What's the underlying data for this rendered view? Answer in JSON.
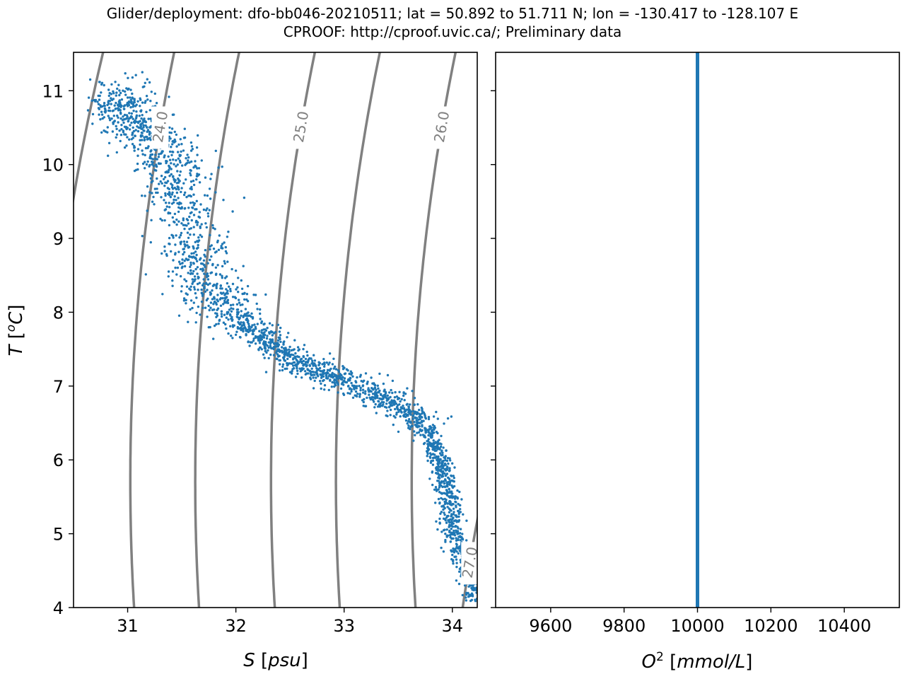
{
  "figure": {
    "title_line1": "Glider/deployment: dfo-bb046-20210511; lat = 50.892 to 51.711 N; lon = -130.417 to -128.107 E",
    "title_line2": "CPROOF: http://cproof.uvic.ca/; Preliminary data"
  },
  "chart_data": [
    {
      "type": "scatter",
      "panel": "left",
      "xlabel_italic": "S",
      "xlabel_unit": "psu",
      "ylabel_italic": "T",
      "ylabel_unit_sup": "o",
      "ylabel_unit_letter": "C",
      "xlim": [
        30.5,
        34.23
      ],
      "ylim": [
        4.0,
        11.52
      ],
      "xticks": [
        31,
        32,
        33,
        34
      ],
      "yticks": [
        4,
        5,
        6,
        7,
        8,
        9,
        10,
        11
      ],
      "color": "#1f77b4",
      "density_contours": [
        {
          "label": "",
          "ref": [
            30.5,
            9.55
          ]
        },
        {
          "label": "24.0",
          "ref": [
            31.3,
            10.5
          ]
        },
        {
          "label": "",
          "ref": [
            31.9,
            10.5
          ]
        },
        {
          "label": "25.0",
          "ref": [
            32.6,
            10.5
          ]
        },
        {
          "label": "",
          "ref": [
            33.2,
            10.5
          ]
        },
        {
          "label": "26.0",
          "ref": [
            33.9,
            10.5
          ]
        },
        {
          "label": "",
          "ref": [
            34.55,
            10.5
          ]
        },
        {
          "label": "27.0",
          "ref": [
            34.16,
            4.6
          ]
        }
      ],
      "contour_color": "#808080",
      "profile": [
        [
          30.85,
          11.0
        ],
        [
          31.0,
          10.7
        ],
        [
          31.15,
          10.5
        ],
        [
          31.3,
          10.2
        ],
        [
          31.45,
          9.8
        ],
        [
          31.55,
          9.2
        ],
        [
          31.65,
          8.6
        ],
        [
          31.8,
          8.2
        ],
        [
          32.05,
          7.9
        ],
        [
          32.3,
          7.6
        ],
        [
          32.55,
          7.35
        ],
        [
          32.85,
          7.15
        ],
        [
          33.2,
          6.95
        ],
        [
          33.5,
          6.75
        ],
        [
          33.75,
          6.45
        ],
        [
          33.88,
          6.0
        ],
        [
          33.95,
          5.6
        ],
        [
          34.0,
          5.1
        ],
        [
          34.1,
          4.6
        ],
        [
          34.22,
          4.1
        ]
      ]
    },
    {
      "type": "scatter",
      "panel": "right",
      "xlabel_base": "O",
      "xlabel_sup": "2",
      "xlabel_unit": "mmol/L",
      "xlim": [
        9450,
        10550
      ],
      "ylim": [
        4.0,
        11.52
      ],
      "xticks": [
        9600,
        9800,
        10000,
        10200,
        10400
      ],
      "x_values": [
        10000
      ],
      "y_range": [
        4.0,
        11.52
      ],
      "color": "#1f77b4"
    }
  ]
}
